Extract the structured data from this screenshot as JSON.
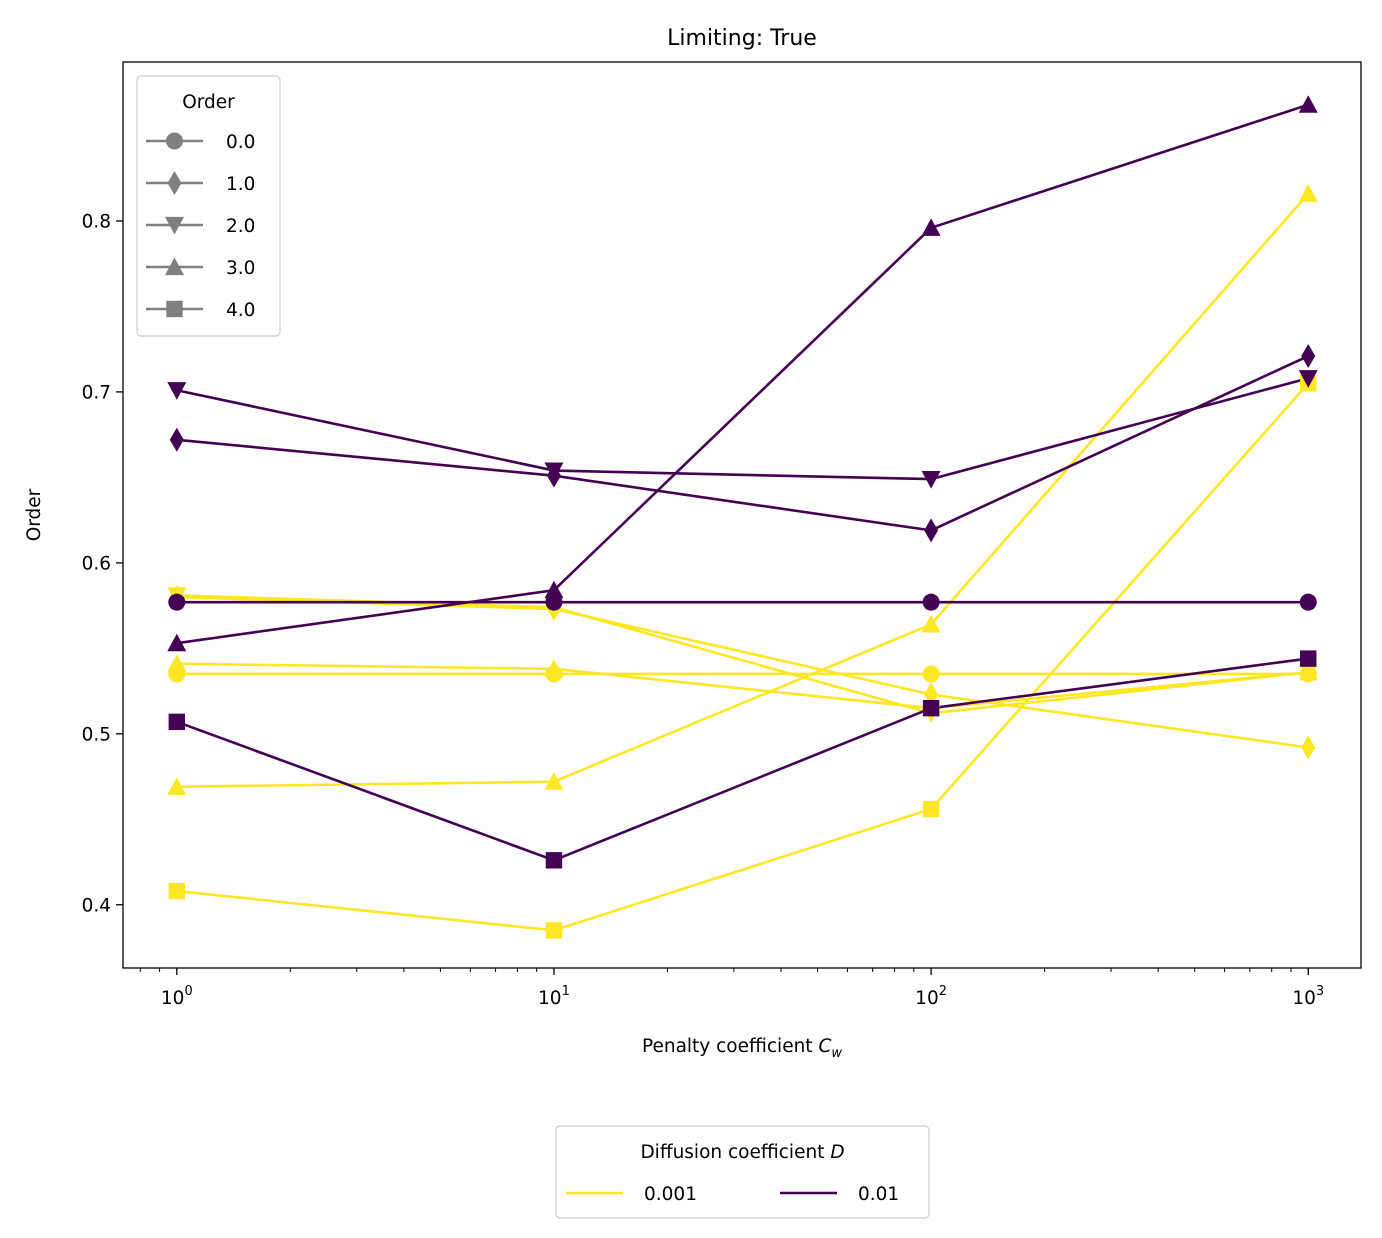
{
  "chart_data": {
    "type": "line",
    "title": "Limiting: True",
    "xlabel": "Penalty coefficient ",
    "xlabel_symbol": "C",
    "xlabel_subscript": "w",
    "ylabel": "Order",
    "x_scale": "log",
    "x": [
      1,
      10,
      100,
      1000
    ],
    "xlim": [
      0.72,
      1380
    ],
    "ylim": [
      0.363,
      0.893
    ],
    "x_ticks": [
      {
        "value": 1,
        "base": "10",
        "exp": "0"
      },
      {
        "value": 10,
        "base": "10",
        "exp": "1"
      },
      {
        "value": 100,
        "base": "10",
        "exp": "2"
      },
      {
        "value": 1000,
        "base": "10",
        "exp": "3"
      }
    ],
    "y_ticks": [
      {
        "value": 0.4,
        "label": "0.4"
      },
      {
        "value": 0.5,
        "label": "0.5"
      },
      {
        "value": 0.6,
        "label": "0.6"
      },
      {
        "value": 0.7,
        "label": "0.7"
      },
      {
        "value": 0.8,
        "label": "0.8"
      }
    ],
    "grid": false,
    "colors": {
      "d0001": "#fde725",
      "d001": "#440154",
      "marker_legend": "#808080"
    },
    "series": [
      {
        "d": "0.001",
        "color": "#fde725",
        "marker": "circle",
        "values": [
          0.535,
          0.535,
          0.535,
          0.535
        ]
      },
      {
        "d": "0.001",
        "color": "#fde725",
        "marker": "diamond",
        "values": [
          0.58,
          0.573,
          0.523,
          0.492
        ]
      },
      {
        "d": "0.001",
        "color": "#fde725",
        "marker": "triangle-down",
        "values": [
          0.581,
          0.574,
          0.512,
          0.536
        ]
      },
      {
        "d": "0.001",
        "color": "#fde725",
        "marker": "triangle-up",
        "values": [
          0.541,
          0.538,
          0.515,
          0.536
        ]
      },
      {
        "d": "0.001",
        "color": "#fde725",
        "marker": "triangle-up",
        "values": [
          0.469,
          0.472,
          0.564,
          0.816
        ]
      },
      {
        "d": "0.001",
        "color": "#fde725",
        "marker": "square",
        "values": [
          0.408,
          0.385,
          0.456,
          0.705
        ]
      },
      {
        "d": "0.01",
        "color": "#440154",
        "marker": "circle",
        "values": [
          0.577,
          0.577,
          0.577,
          0.577
        ]
      },
      {
        "d": "0.01",
        "color": "#440154",
        "marker": "diamond",
        "values": [
          0.672,
          0.651,
          0.619,
          0.721
        ]
      },
      {
        "d": "0.01",
        "color": "#440154",
        "marker": "triangle-down",
        "values": [
          0.701,
          0.654,
          0.649,
          0.708
        ]
      },
      {
        "d": "0.01",
        "color": "#440154",
        "marker": "triangle-up",
        "values": [
          0.553,
          0.584,
          0.796,
          0.868
        ]
      },
      {
        "d": "0.01",
        "color": "#440154",
        "marker": "square",
        "values": [
          0.507,
          0.426,
          0.515,
          0.544
        ]
      }
    ],
    "marker_legend": {
      "title": "Order",
      "placement": "upper-left",
      "entries": [
        {
          "label": "0.0",
          "marker": "circle"
        },
        {
          "label": "1.0",
          "marker": "diamond"
        },
        {
          "label": "2.0",
          "marker": "triangle-down"
        },
        {
          "label": "3.0",
          "marker": "triangle-up"
        },
        {
          "label": "4.0",
          "marker": "square"
        }
      ]
    },
    "color_legend": {
      "title": "Diffusion coefficient ",
      "title_symbol": "D",
      "placement": "below-center",
      "entries": [
        {
          "label": "0.001",
          "color": "#fde725"
        },
        {
          "label": "0.01",
          "color": "#440154"
        }
      ]
    }
  }
}
